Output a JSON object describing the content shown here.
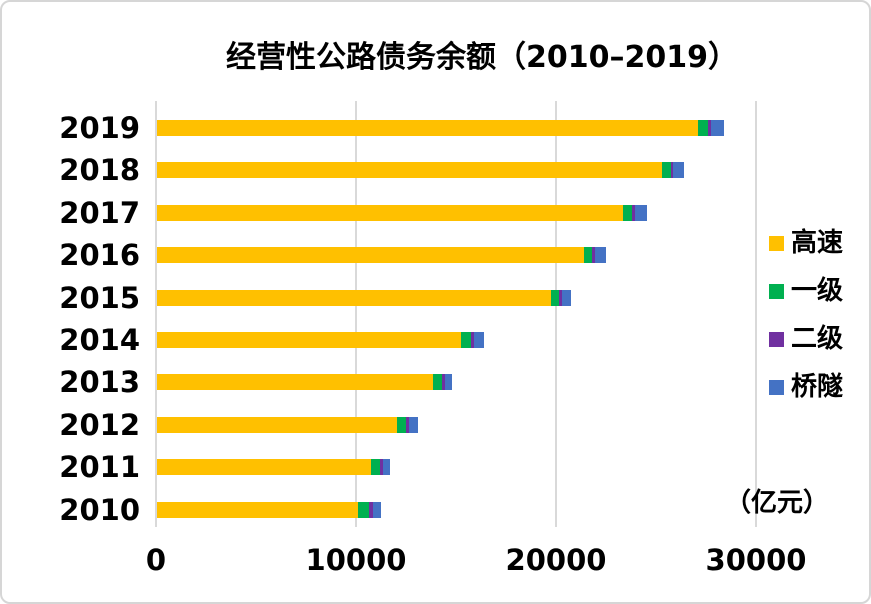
{
  "title": "经营性公路债务余额（2010–2019）",
  "unit_label": "（亿元）",
  "chart_data": {
    "type": "bar",
    "orientation": "horizontal",
    "stacked": true,
    "title": "经营性公路债务余额（2010–2019）",
    "unit": "亿元",
    "grid": true,
    "legend_position": "right",
    "categories": [
      "2019",
      "2018",
      "2017",
      "2016",
      "2015",
      "2014",
      "2013",
      "2012",
      "2011",
      "2010"
    ],
    "series": [
      {
        "name": "高速",
        "color": "#FFC000",
        "values": [
          27050,
          25250,
          23300,
          21350,
          19700,
          15200,
          13800,
          12000,
          10700,
          10050
        ]
      },
      {
        "name": "一级",
        "color": "#00B050",
        "values": [
          500,
          450,
          450,
          400,
          400,
          500,
          430,
          450,
          470,
          550
        ]
      },
      {
        "name": "二级",
        "color": "#7030A0",
        "values": [
          150,
          120,
          150,
          150,
          150,
          150,
          150,
          150,
          130,
          200
        ]
      },
      {
        "name": "桥隧",
        "color": "#4472C4",
        "values": [
          650,
          550,
          600,
          550,
          450,
          500,
          380,
          450,
          350,
          400
        ]
      }
    ],
    "x_ticks": [
      0,
      10000,
      20000,
      30000
    ],
    "x_tick_labels": [
      "0",
      "10000",
      "20000",
      "30000"
    ],
    "xlim": [
      0,
      30350
    ]
  },
  "colors": {
    "gridline": "#D9D9D9",
    "text": "#000000",
    "background": "#FFFFFF",
    "border": "#D6D6D6"
  }
}
